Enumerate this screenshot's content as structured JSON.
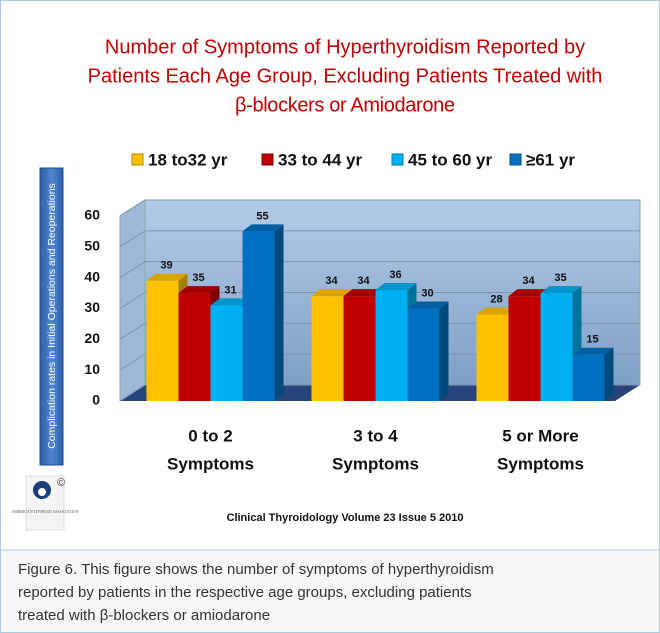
{
  "chart_data": {
    "type": "bar3d",
    "title": [
      "Number of  Symptoms of Hyperthyroidism Reported by",
      "Patients Each Age Group,  Excluding Patients Treated with",
      "β-blockers or Amiodarone"
    ],
    "y_label": "Complication rates in Initial Operations and Reoperations",
    "categories": [
      [
        "0 to 2",
        "Symptoms"
      ],
      [
        "3 to 4",
        "Symptoms"
      ],
      [
        "5 or More",
        "Symptoms"
      ]
    ],
    "series": [
      {
        "name": "18 to32 yr",
        "color": "#ffc000",
        "values": [
          39,
          34,
          28
        ]
      },
      {
        "name": "33 to 44 yr",
        "color": "#c00000",
        "values": [
          35,
          34,
          34
        ]
      },
      {
        "name": "45 to 60 yr",
        "color": "#00b0f0",
        "values": [
          31,
          36,
          35
        ]
      },
      {
        "name": "≥61 yr",
        "color": "#0070c0",
        "values": [
          55,
          30,
          15
        ]
      }
    ],
    "ylim": [
      0,
      60
    ],
    "yticks": [
      0,
      10,
      20,
      30,
      40,
      50,
      60
    ],
    "grid": true,
    "legend": "top",
    "source": "Clinical Thyroidology Volume 23 Issue 5 2010",
    "logo_text": "AMERICAN THYROID ASSOCIATION",
    "caption": [
      "Figure 6. This figure shows the number of symptoms of hyperthyroidism",
      "reported by patients in the respective age groups, excluding patients",
      "treated with β-blockers or amiodarone"
    ]
  }
}
